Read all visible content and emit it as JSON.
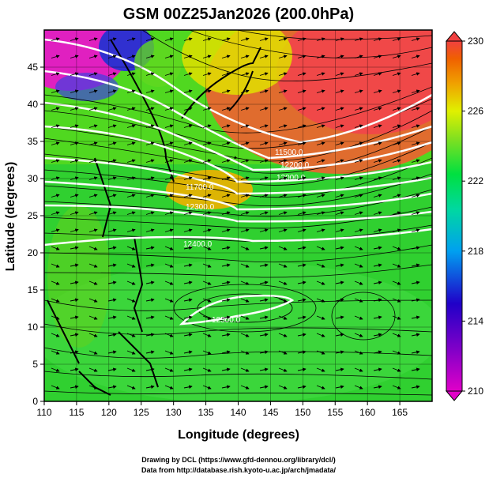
{
  "title": "GSM 00Z25Jan2026 (200.0hPa)",
  "x_axis": {
    "label": "Longitude (degrees)",
    "ticks": [
      "110",
      "115",
      "120",
      "125",
      "130",
      "135",
      "140",
      "145",
      "150",
      "155",
      "160",
      "165"
    ]
  },
  "y_axis": {
    "label": "Latitude  (degrees)",
    "ticks": [
      "0",
      "5",
      "10",
      "15",
      "20",
      "25",
      "30",
      "35",
      "40",
      "45"
    ]
  },
  "colorbar": {
    "labels": [
      "210",
      "214",
      "218",
      "222",
      "226",
      "230"
    ],
    "colors": [
      "#e000c8",
      "#2000c8",
      "#00a0f0",
      "#00e060",
      "#60e020",
      "#e0f000",
      "#f0a000",
      "#f06000",
      "#f04040"
    ]
  },
  "contour_labels": [
    "11500.0",
    "12200.0",
    "12000.0",
    "11700.0",
    "12300.0",
    "12400.0",
    "12500.0"
  ],
  "credits": [
    "Drawing by DCL (https://www.gfd-dennou.org/library/dcl/)",
    "Data from http://database.rish.kyoto-u.ac.jp/arch/jmadata/"
  ],
  "chart_data": {
    "type": "heatmap",
    "title": "GSM 00Z25Jan2026 (200.0hPa)",
    "xlabel": "Longitude (degrees)",
    "ylabel": "Latitude  (degrees)",
    "xlim": [
      110,
      170
    ],
    "ylim": [
      0,
      50
    ],
    "colorbar_range": [
      210,
      230
    ],
    "colorbar_ticks": [
      210,
      214,
      218,
      222,
      226,
      230
    ],
    "contour_labels": [
      11500,
      12200,
      12000,
      11700,
      12300,
      12400,
      12500
    ],
    "grid": true
  }
}
